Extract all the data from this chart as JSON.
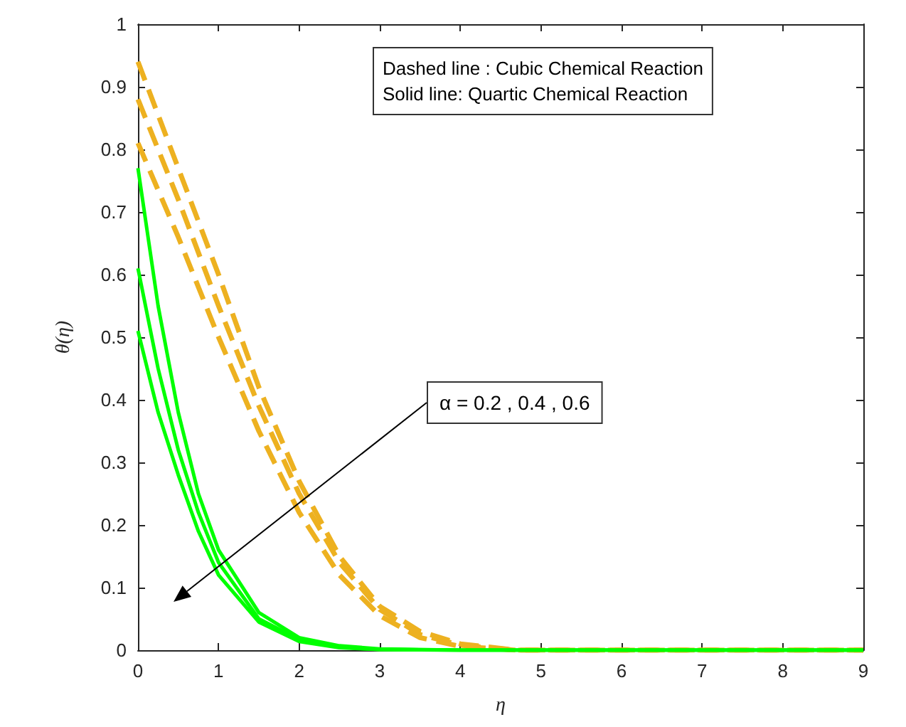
{
  "chart_data": {
    "type": "line",
    "xlabel": "η",
    "ylabel": "θ(η)",
    "xlim": [
      0,
      9
    ],
    "xticks": [
      0,
      1,
      2,
      3,
      4,
      5,
      6,
      7,
      8,
      9
    ],
    "ylim": [
      0,
      1
    ],
    "yticks": [
      0,
      0.1,
      0.2,
      0.3,
      0.4,
      0.5,
      0.6,
      0.7,
      0.8,
      0.9,
      1
    ],
    "grid": false,
    "marker": "none",
    "annotations": [
      "Dashed line : Cubic Chemical Reaction",
      "Solid line: Quartic Chemical Reaction",
      "α = 0.2 , 0.4 , 0.6"
    ],
    "series": [
      {
        "color": "#edb120",
        "line_style": "dashed",
        "x": [
          0,
          0.5,
          1,
          1.5,
          2,
          2.5,
          3,
          3.5,
          4,
          4.7,
          5,
          6,
          7,
          8,
          9
        ],
        "values": [
          0.94,
          0.77,
          0.6,
          0.42,
          0.27,
          0.15,
          0.07,
          0.03,
          0.01,
          0,
          0,
          0,
          0,
          0,
          0
        ]
      },
      {
        "color": "#edb120",
        "line_style": "dashed",
        "x": [
          0,
          0.5,
          1,
          1.5,
          2,
          2.5,
          3,
          3.5,
          4,
          4.7,
          5,
          6,
          7,
          8,
          9
        ],
        "values": [
          0.88,
          0.72,
          0.55,
          0.39,
          0.25,
          0.14,
          0.065,
          0.025,
          0.008,
          0,
          0,
          0,
          0,
          0,
          0
        ]
      },
      {
        "color": "#edb120",
        "line_style": "dashed",
        "x": [
          0,
          0.5,
          1,
          1.5,
          2,
          2.5,
          3,
          3.5,
          4,
          4.7,
          5,
          6,
          7,
          8,
          9
        ],
        "values": [
          0.81,
          0.66,
          0.5,
          0.35,
          0.22,
          0.12,
          0.055,
          0.02,
          0.006,
          0,
          0,
          0,
          0,
          0,
          0
        ]
      },
      {
        "color": "#00ff00",
        "line_style": "solid",
        "x": [
          0,
          0.25,
          0.5,
          0.75,
          1,
          1.5,
          2,
          2.5,
          3,
          4,
          5,
          6,
          7,
          8,
          9
        ],
        "values": [
          0.77,
          0.55,
          0.38,
          0.25,
          0.16,
          0.06,
          0.02,
          0.007,
          0.002,
          0,
          0,
          0,
          0,
          0,
          0
        ]
      },
      {
        "color": "#00ff00",
        "line_style": "solid",
        "x": [
          0,
          0.25,
          0.5,
          0.75,
          1,
          1.5,
          2,
          2.5,
          3,
          4,
          5,
          6,
          7,
          8,
          9
        ],
        "values": [
          0.61,
          0.45,
          0.32,
          0.22,
          0.14,
          0.05,
          0.017,
          0.005,
          0.001,
          0,
          0,
          0,
          0,
          0,
          0
        ]
      },
      {
        "color": "#00ff00",
        "line_style": "solid",
        "x": [
          0,
          0.25,
          0.5,
          0.75,
          1,
          1.5,
          2,
          2.5,
          3,
          4,
          5,
          6,
          7,
          8,
          9
        ],
        "values": [
          0.51,
          0.38,
          0.28,
          0.19,
          0.12,
          0.045,
          0.014,
          0.004,
          0.001,
          0,
          0,
          0,
          0,
          0,
          0
        ]
      }
    ]
  }
}
